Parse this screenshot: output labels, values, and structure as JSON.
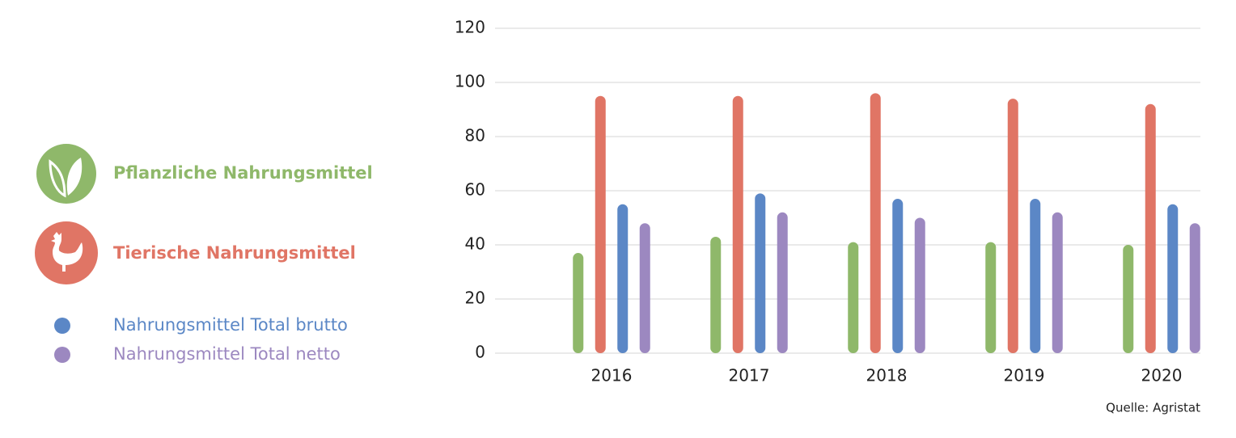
{
  "chart_data": {
    "type": "bar",
    "categories": [
      "2016",
      "2017",
      "2018",
      "2019",
      "2020"
    ],
    "series": [
      {
        "name": "Pflanzliche Nahrungsmittel",
        "color": "#8fb86a",
        "values": [
          37,
          43,
          41,
          41,
          40
        ]
      },
      {
        "name": "Tierische Nahrungsmittel",
        "color": "#e07565",
        "values": [
          95,
          95,
          96,
          94,
          92
        ]
      },
      {
        "name": "Nahrungsmittel Total brutto",
        "color": "#5b87c6",
        "values": [
          55,
          59,
          57,
          57,
          55
        ]
      },
      {
        "name": "Nahrungsmittel Total netto",
        "color": "#9c88c0",
        "values": [
          48,
          52,
          50,
          52,
          48
        ]
      }
    ],
    "ylim": [
      0,
      120
    ],
    "yticks": [
      0,
      20,
      40,
      60,
      80,
      100,
      120
    ],
    "grid": true,
    "source": "Quelle: Agristat"
  }
}
